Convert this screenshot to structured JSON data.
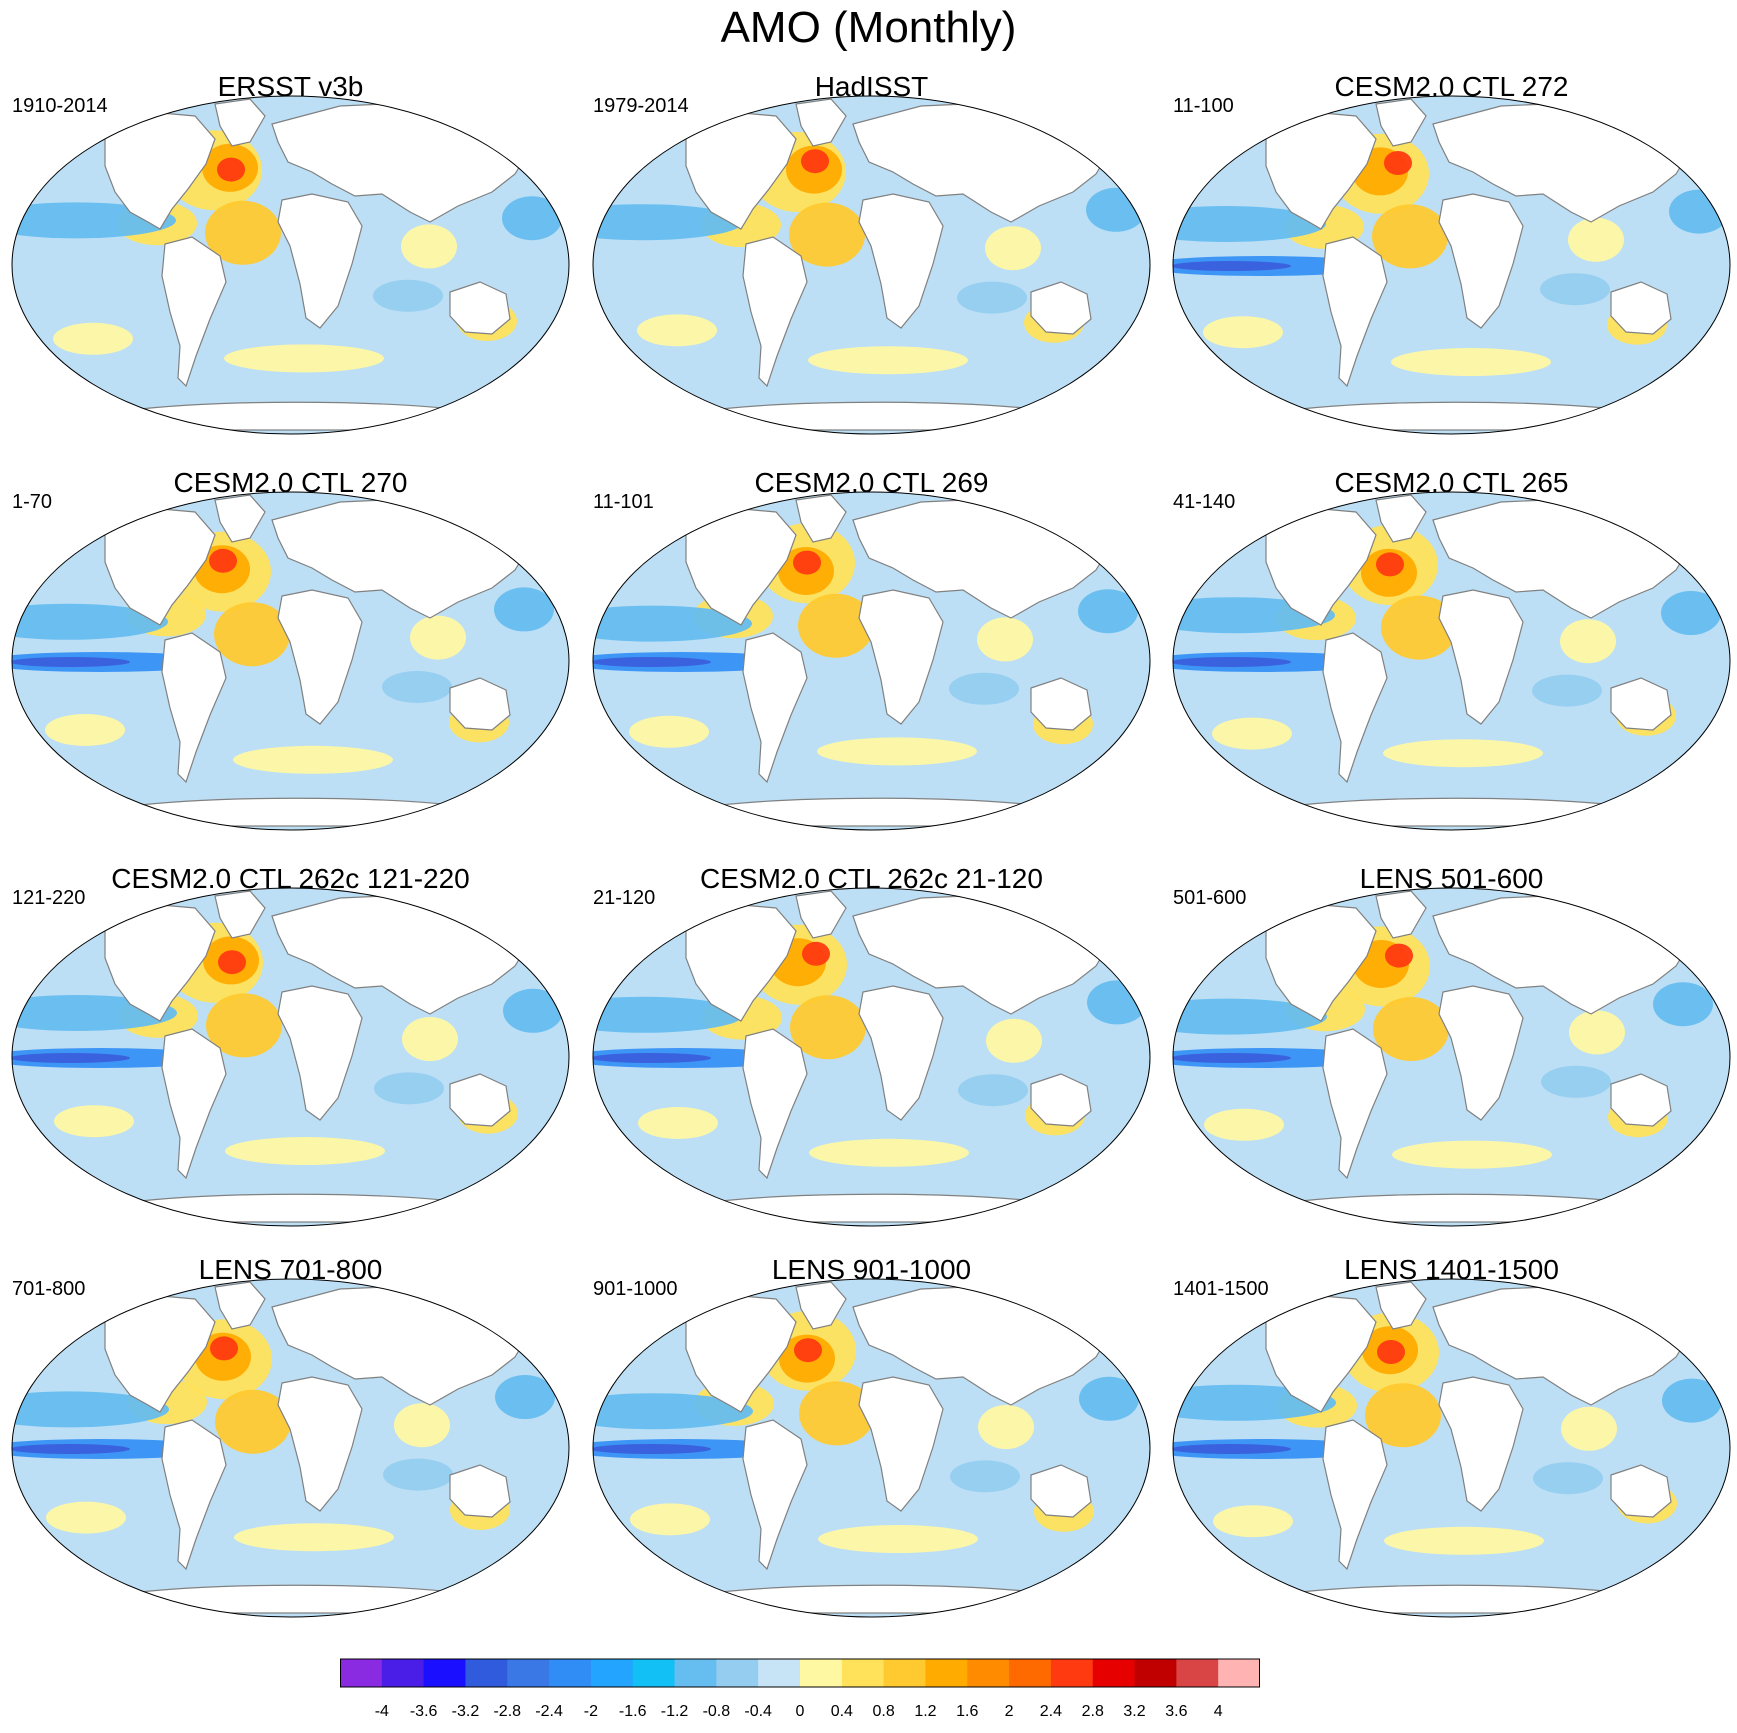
{
  "title": "AMO (Monthly)",
  "panels": [
    {
      "title": "ERSST v3b",
      "years": "1910-2014"
    },
    {
      "title": "HadISST",
      "years": "1979-2014"
    },
    {
      "title": "CESM2.0 CTL 272",
      "years": "11-100"
    },
    {
      "title": "CESM2.0 CTL 270",
      "years": "1-70"
    },
    {
      "title": "CESM2.0 CTL 269",
      "years": "11-101"
    },
    {
      "title": "CESM2.0 CTL 265",
      "years": "41-140"
    },
    {
      "title": "CESM2.0 CTL 262c 121-220",
      "years": "121-220"
    },
    {
      "title": "CESM2.0 CTL 262c 21-120",
      "years": "21-120"
    },
    {
      "title": "LENS 501-600",
      "years": "501-600"
    },
    {
      "title": "LENS 701-800",
      "years": "701-800"
    },
    {
      "title": "LENS 901-1000",
      "years": "901-1000"
    },
    {
      "title": "LENS 1401-1500",
      "years": "1401-1500"
    }
  ],
  "colorbar": {
    "labels": [
      "-4",
      "-3.6",
      "-3.2",
      "-2.8",
      "-2.4",
      "-2",
      "-1.6",
      "-1.2",
      "-0.8",
      "-0.4",
      "0",
      "0.4",
      "0.8",
      "1.2",
      "1.6",
      "2",
      "2.4",
      "2.8",
      "3.2",
      "3.6",
      "4"
    ],
    "colors": [
      "#8a2be2",
      "#4b1ee8",
      "#1a10ff",
      "#2f5bdc",
      "#3a78e6",
      "#2f8df5",
      "#22a4ff",
      "#12c0f5",
      "#66bdef",
      "#95cdf0",
      "#c6e4f6",
      "#fff8a3",
      "#ffe15a",
      "#ffc930",
      "#ffab00",
      "#ff8c00",
      "#ff6a00",
      "#ff3a10",
      "#e60000",
      "#c00000",
      "#d94545",
      "#ffb3b3"
    ]
  },
  "style": {
    "ocean_base": "#bcdff5",
    "land": "#ffffff",
    "coastline": "#808080",
    "warm": [
      "#fff8a3",
      "#ffe15a",
      "#ffc930",
      "#ffab00",
      "#ff8c00",
      "#ff3a10",
      "#e60000"
    ],
    "cool": [
      "#95cdf0",
      "#66bdef",
      "#2f8df5",
      "#3a5bdc"
    ]
  }
}
